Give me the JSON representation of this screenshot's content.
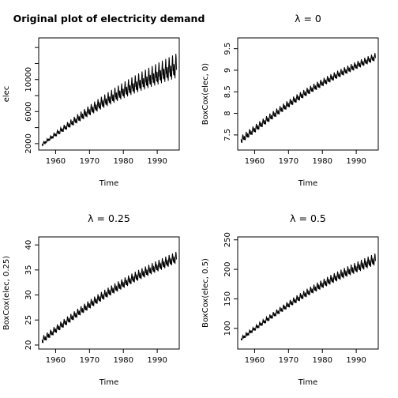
{
  "chart_data": [
    {
      "type": "line",
      "title": "Original plot of electricity demand",
      "title_bold": true,
      "xlabel": "Time",
      "ylabel": "elec",
      "xlim": [
        1955,
        1996.5
      ],
      "ylim": [
        1200,
        15200
      ],
      "xticks": [
        1960,
        1970,
        1980,
        1990
      ],
      "yticks": [
        2000,
        6000,
        10000
      ],
      "yticks_unlabeled": [
        4000,
        8000,
        12000,
        14000
      ],
      "grid": false,
      "series_start": 1956,
      "series_end": 1995.67,
      "trend_start": 1900,
      "trend_end": 12400,
      "seasonal_amp_start": 200,
      "seasonal_amp_end": 1700
    },
    {
      "type": "line",
      "title": "λ = 0",
      "title_bold": false,
      "xlabel": "Time",
      "ylabel": "BoxCox(elec, 0)",
      "xlim": [
        1955,
        1996.5
      ],
      "ylim": [
        7.15,
        9.75
      ],
      "xticks": [
        1960,
        1970,
        1980,
        1990
      ],
      "yticks": [
        7.5,
        8.0,
        8.5,
        9.0,
        9.5
      ],
      "grid": false,
      "series_start": 1956,
      "series_end": 1995.67,
      "trend_start": 7.38,
      "trend_end": 9.47,
      "seasonal_amp_start": 0.1,
      "seasonal_amp_end": 0.1
    },
    {
      "type": "line",
      "title": "λ = 0.25",
      "title_bold": false,
      "xlabel": "Time",
      "ylabel": "BoxCox(elec, 0.25)",
      "xlim": [
        1955,
        1996.5
      ],
      "ylim": [
        19.2,
        41.6
      ],
      "xticks": [
        1960,
        1970,
        1980,
        1990
      ],
      "yticks": [
        20,
        25,
        30,
        35,
        40
      ],
      "grid": false,
      "series_start": 1956,
      "series_end": 1995.67,
      "trend_start": 20.9,
      "trend_end": 38.8,
      "seasonal_amp_start": 0.8,
      "seasonal_amp_end": 1.3
    },
    {
      "type": "line",
      "title": "λ = 0.5",
      "title_bold": false,
      "xlabel": "Time",
      "ylabel": "BoxCox(elec, 0.5)",
      "xlim": [
        1955,
        1996.5
      ],
      "ylim": [
        65,
        255
      ],
      "xticks": [
        1960,
        1970,
        1980,
        1990
      ],
      "yticks": [
        100,
        150,
        200,
        250
      ],
      "grid": false,
      "series_start": 1956,
      "series_end": 1995.67,
      "trend_start": 82,
      "trend_end": 228,
      "seasonal_amp_start": 4,
      "seasonal_amp_end": 11
    }
  ]
}
